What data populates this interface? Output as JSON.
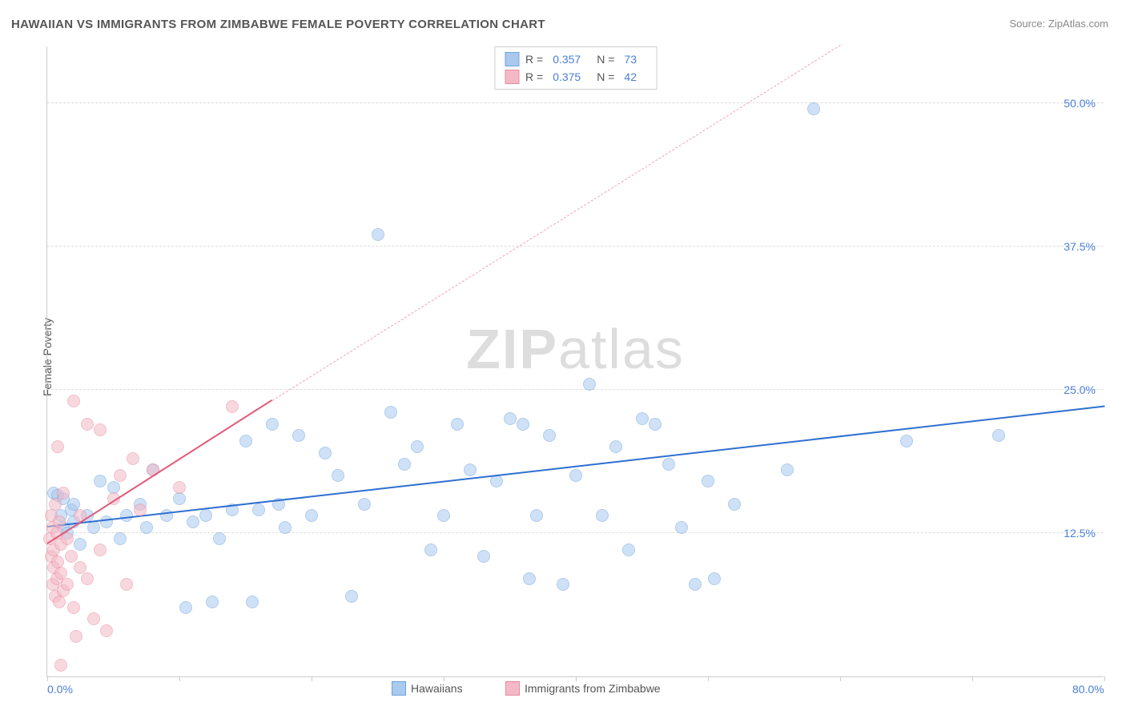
{
  "title": "HAWAIIAN VS IMMIGRANTS FROM ZIMBABWE FEMALE POVERTY CORRELATION CHART",
  "source": "Source: ZipAtlas.com",
  "ylabel": "Female Poverty",
  "watermark_bold": "ZIP",
  "watermark_light": "atlas",
  "chart": {
    "type": "scatter",
    "background_color": "#ffffff",
    "grid_color": "#dddddd",
    "grid_style": "dashed",
    "axis_color": "#cccccc",
    "xlim": [
      0,
      80
    ],
    "ylim": [
      0,
      55
    ],
    "x_ticks": [
      0,
      10,
      20,
      30,
      40,
      50,
      60,
      70,
      80
    ],
    "x_tick_labels": {
      "0": "0.0%",
      "80": "80.0%"
    },
    "y_ticks": [
      12.5,
      25.0,
      37.5,
      50.0
    ],
    "y_tick_labels": [
      "12.5%",
      "25.0%",
      "37.5%",
      "50.0%"
    ],
    "tick_label_color": "#4a7fd6",
    "tick_label_fontsize": 14,
    "axis_label_color": "#555555",
    "marker_radius": 8,
    "marker_opacity": 0.55,
    "series": [
      {
        "name": "Hawaiians",
        "color_fill": "#a9c9ef",
        "color_stroke": "#6fa3e0",
        "R": "0.357",
        "N": "73",
        "trendline": {
          "x1": 0,
          "y1": 13.0,
          "x2": 80,
          "y2": 23.5,
          "color": "#2e6fd1",
          "width": 2,
          "style": "solid"
        },
        "points": [
          [
            0.5,
            16.0
          ],
          [
            0.8,
            15.8
          ],
          [
            1.0,
            14.0
          ],
          [
            1.2,
            13.0
          ],
          [
            1.2,
            15.5
          ],
          [
            1.5,
            12.5
          ],
          [
            1.8,
            14.5
          ],
          [
            2.0,
            13.5
          ],
          [
            2.0,
            15.0
          ],
          [
            2.5,
            11.5
          ],
          [
            3.0,
            14.0
          ],
          [
            3.5,
            13.0
          ],
          [
            4.0,
            17.0
          ],
          [
            4.5,
            13.5
          ],
          [
            5.0,
            16.5
          ],
          [
            5.5,
            12.0
          ],
          [
            6.0,
            14.0
          ],
          [
            7.0,
            15.0
          ],
          [
            7.5,
            13.0
          ],
          [
            8.0,
            18.0
          ],
          [
            9.0,
            14.0
          ],
          [
            10.0,
            15.5
          ],
          [
            10.5,
            6.0
          ],
          [
            11.0,
            13.5
          ],
          [
            12.0,
            14.0
          ],
          [
            12.5,
            6.5
          ],
          [
            13.0,
            12.0
          ],
          [
            14.0,
            14.5
          ],
          [
            15.0,
            20.5
          ],
          [
            15.5,
            6.5
          ],
          [
            16.0,
            14.5
          ],
          [
            17.0,
            22.0
          ],
          [
            17.5,
            15.0
          ],
          [
            18.0,
            13.0
          ],
          [
            19.0,
            21.0
          ],
          [
            20.0,
            14.0
          ],
          [
            21.0,
            19.5
          ],
          [
            22.0,
            17.5
          ],
          [
            23.0,
            7.0
          ],
          [
            24.0,
            15.0
          ],
          [
            25.0,
            38.5
          ],
          [
            26.0,
            23.0
          ],
          [
            27.0,
            18.5
          ],
          [
            28.0,
            20.0
          ],
          [
            29.0,
            11.0
          ],
          [
            30.0,
            14.0
          ],
          [
            31.0,
            22.0
          ],
          [
            32.0,
            18.0
          ],
          [
            33.0,
            10.5
          ],
          [
            34.0,
            17.0
          ],
          [
            35.0,
            22.5
          ],
          [
            36.0,
            22.0
          ],
          [
            36.5,
            8.5
          ],
          [
            37.0,
            14.0
          ],
          [
            38.0,
            21.0
          ],
          [
            39.0,
            8.0
          ],
          [
            40.0,
            17.5
          ],
          [
            41.0,
            25.5
          ],
          [
            42.0,
            14.0
          ],
          [
            43.0,
            20.0
          ],
          [
            44.0,
            11.0
          ],
          [
            45.0,
            22.5
          ],
          [
            46.0,
            22.0
          ],
          [
            47.0,
            18.5
          ],
          [
            48.0,
            13.0
          ],
          [
            49.0,
            8.0
          ],
          [
            50.0,
            17.0
          ],
          [
            50.5,
            8.5
          ],
          [
            52.0,
            15.0
          ],
          [
            56.0,
            18.0
          ],
          [
            58.0,
            49.5
          ],
          [
            65.0,
            20.5
          ],
          [
            72.0,
            21.0
          ]
        ]
      },
      {
        "name": "Immigrants from Zimbabwe",
        "color_fill": "#f4b9c5",
        "color_stroke": "#e88aa0",
        "R": "0.375",
        "N": "42",
        "trendline": {
          "x1": 0,
          "y1": 11.5,
          "x2": 17,
          "y2": 24.0,
          "color": "#e05a7a",
          "width": 2,
          "style": "solid"
        },
        "trendline_ext": {
          "x1": 17,
          "y1": 24.0,
          "x2": 60,
          "y2": 55.0,
          "color": "#f0a3b5",
          "width": 1,
          "style": "dashed"
        },
        "points": [
          [
            0.2,
            12.0
          ],
          [
            0.3,
            14.0
          ],
          [
            0.3,
            10.5
          ],
          [
            0.4,
            8.0
          ],
          [
            0.4,
            13.0
          ],
          [
            0.5,
            11.0
          ],
          [
            0.5,
            9.5
          ],
          [
            0.6,
            7.0
          ],
          [
            0.6,
            15.0
          ],
          [
            0.7,
            12.5
          ],
          [
            0.7,
            8.5
          ],
          [
            0.8,
            10.0
          ],
          [
            0.8,
            20.0
          ],
          [
            0.9,
            6.5
          ],
          [
            0.9,
            13.5
          ],
          [
            1.0,
            9.0
          ],
          [
            1.0,
            11.5
          ],
          [
            1.2,
            7.5
          ],
          [
            1.2,
            16.0
          ],
          [
            1.5,
            8.0
          ],
          [
            1.5,
            12.0
          ],
          [
            1.8,
            10.5
          ],
          [
            2.0,
            24.0
          ],
          [
            2.0,
            6.0
          ],
          [
            2.2,
            3.5
          ],
          [
            2.5,
            9.5
          ],
          [
            2.5,
            14.0
          ],
          [
            3.0,
            8.5
          ],
          [
            3.0,
            22.0
          ],
          [
            3.5,
            5.0
          ],
          [
            4.0,
            21.5
          ],
          [
            4.0,
            11.0
          ],
          [
            4.5,
            4.0
          ],
          [
            5.0,
            15.5
          ],
          [
            5.5,
            17.5
          ],
          [
            6.0,
            8.0
          ],
          [
            6.5,
            19.0
          ],
          [
            7.0,
            14.5
          ],
          [
            8.0,
            18.0
          ],
          [
            10.0,
            16.5
          ],
          [
            14.0,
            23.5
          ],
          [
            1.0,
            1.0
          ]
        ]
      }
    ],
    "bottom_legend": [
      {
        "label": "Hawaiians",
        "fill": "#a9c9ef",
        "stroke": "#6fa3e0"
      },
      {
        "label": "Immigrants from Zimbabwe",
        "fill": "#f4b9c5",
        "stroke": "#e88aa0"
      }
    ]
  }
}
